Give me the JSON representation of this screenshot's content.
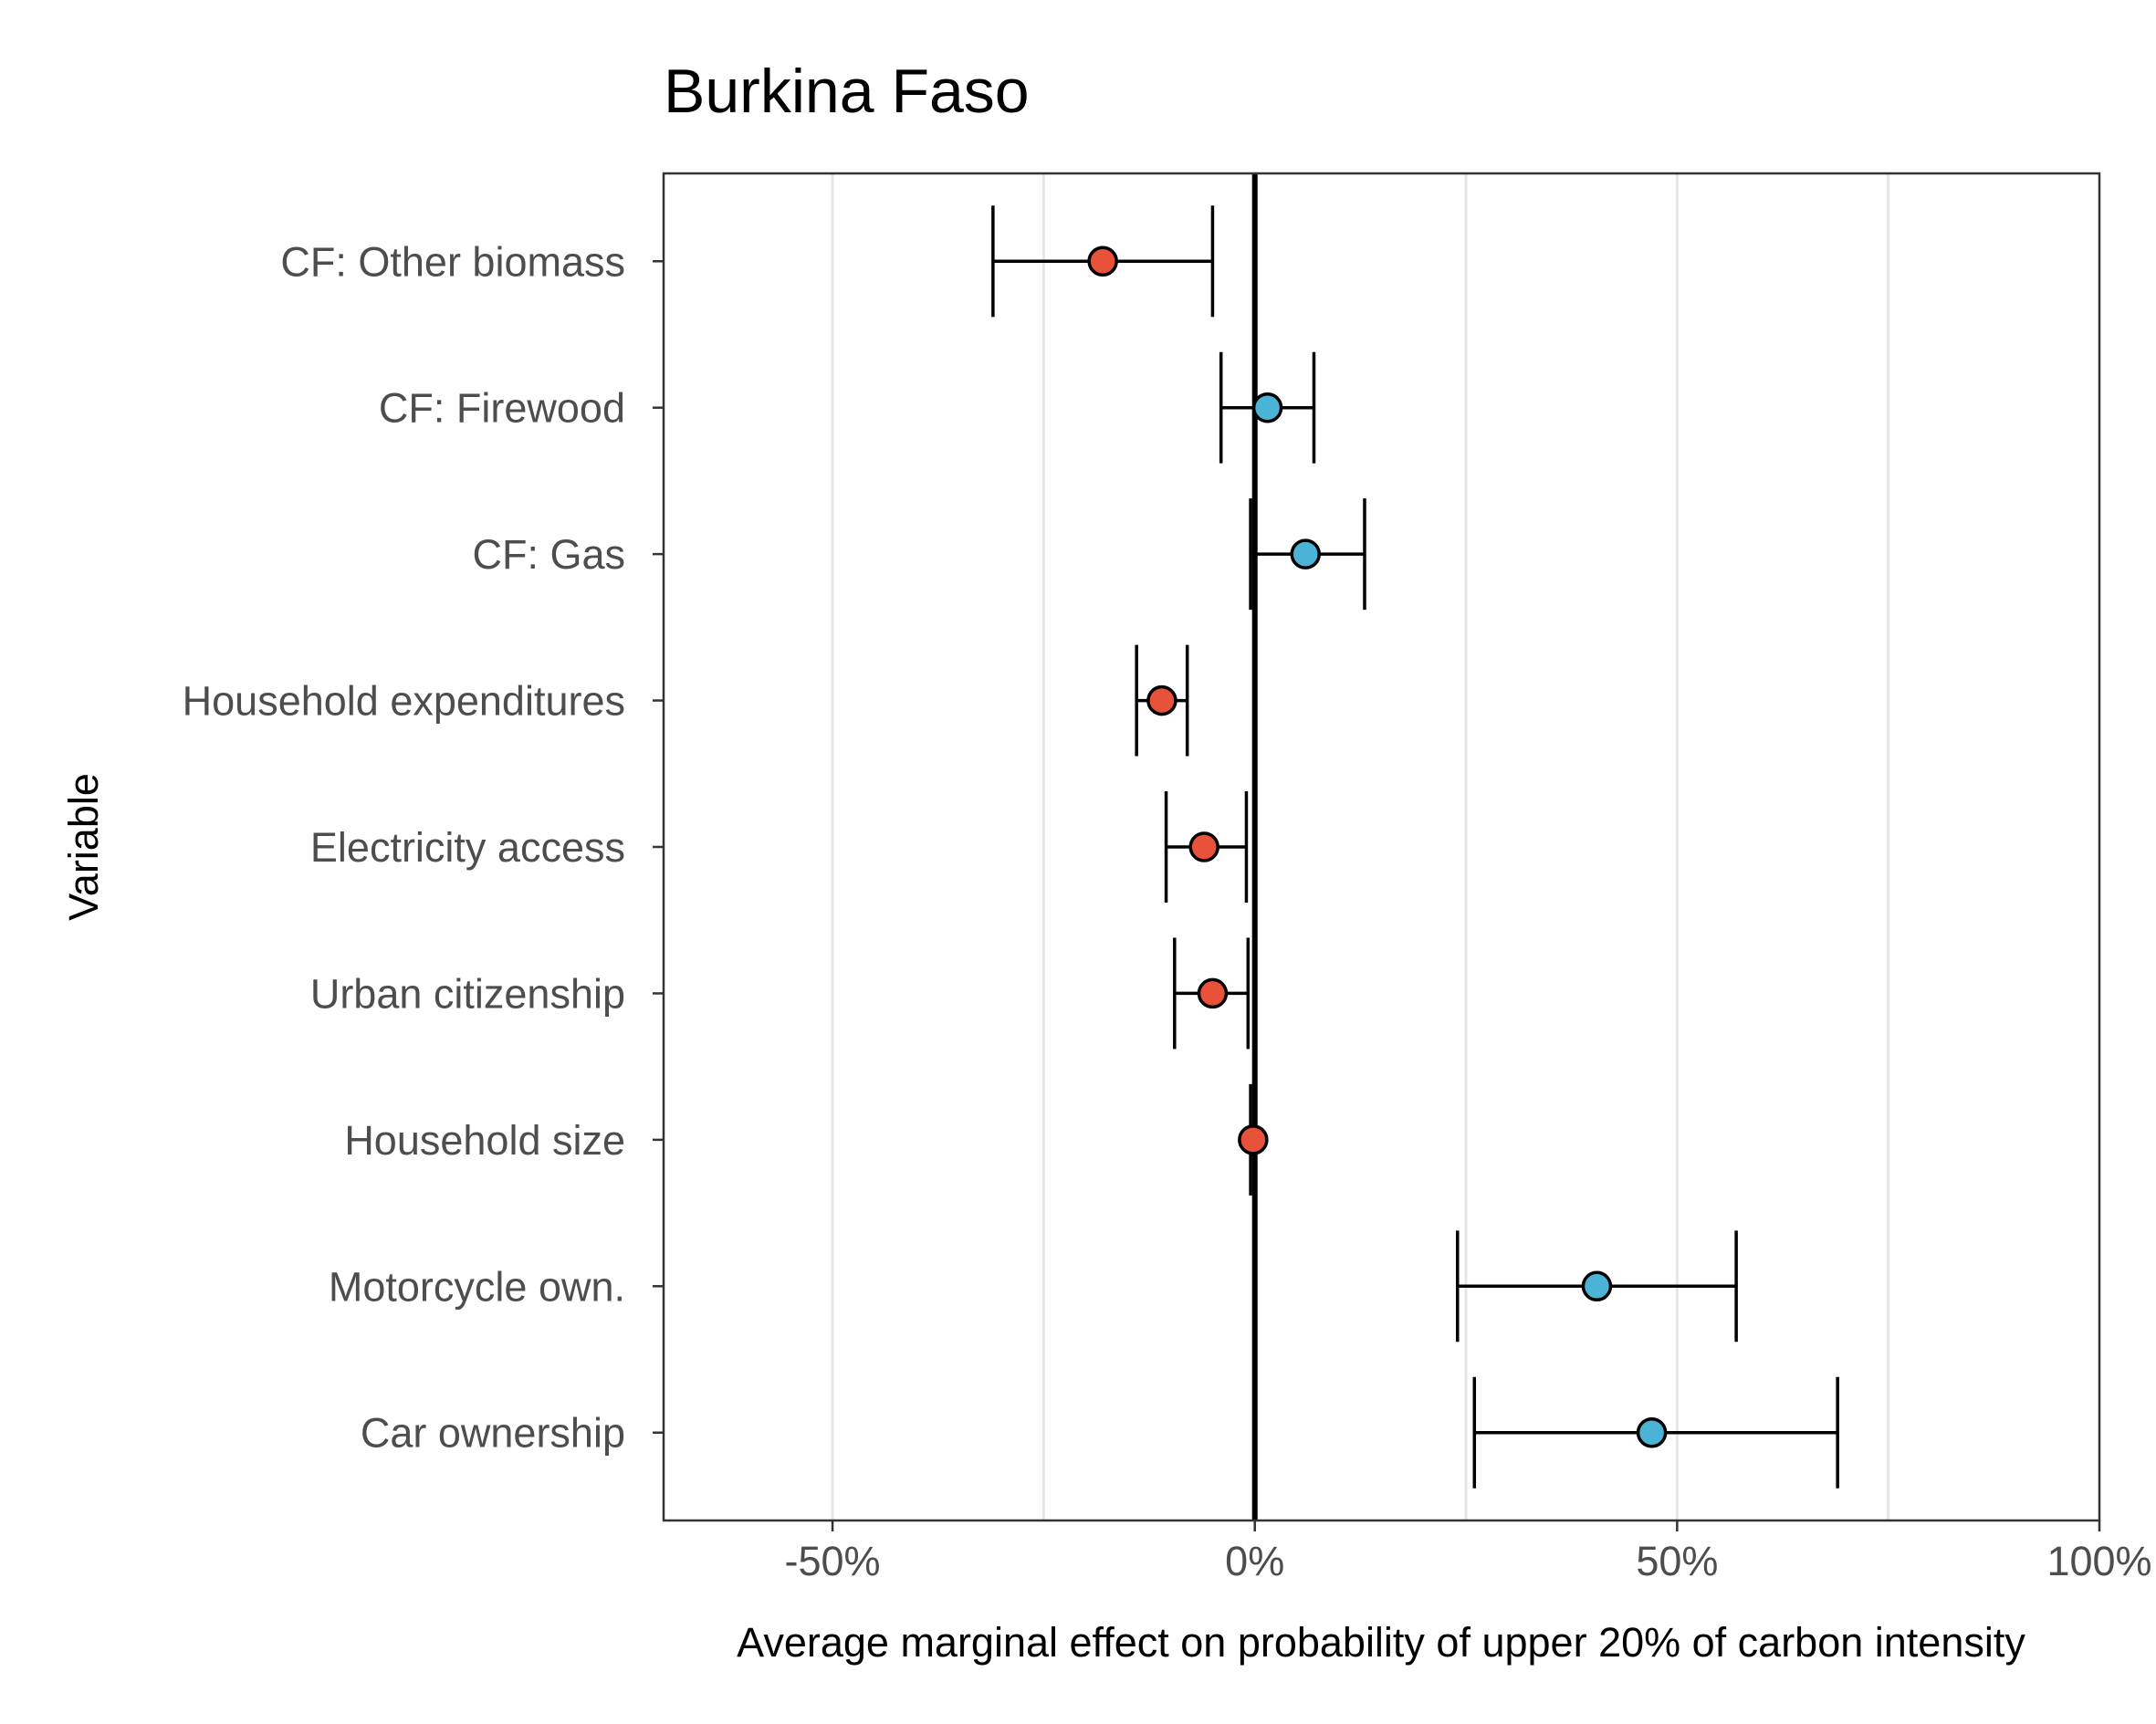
{
  "chart_data": {
    "type": "scatter",
    "subtype": "coefficient plot with error bars",
    "title": "Burkina Faso",
    "xlabel": "Average marginal effect on probability of upper 20% of carbon intensity",
    "ylabel": "Variable",
    "xlim": [
      -70,
      100
    ],
    "x_ticks": [
      -50,
      0,
      50,
      100
    ],
    "x_tick_labels": [
      "-50%",
      "0%",
      "50%",
      "100%"
    ],
    "x_grid": true,
    "reference_line_x": 0,
    "colors": {
      "negative": "#E8513A",
      "positive": "#4BB4D6"
    },
    "categories": [
      "CF: Other biomass",
      "CF: Firewood",
      "CF: Gas",
      "Household expenditures",
      "Electricity access",
      "Urban citizenship",
      "Household size",
      "Motorcycle own.",
      "Car ownership"
    ],
    "points": [
      {
        "label": "CF: Other biomass",
        "estimate": -18,
        "ci_low": -31,
        "ci_high": -5,
        "sign": "negative"
      },
      {
        "label": "CF: Firewood",
        "estimate": 1.5,
        "ci_low": -4,
        "ci_high": 7,
        "sign": "positive"
      },
      {
        "label": "CF: Gas",
        "estimate": 6,
        "ci_low": -0.5,
        "ci_high": 13,
        "sign": "positive"
      },
      {
        "label": "Household expenditures",
        "estimate": -11,
        "ci_low": -14,
        "ci_high": -8,
        "sign": "negative"
      },
      {
        "label": "Electricity access",
        "estimate": -6,
        "ci_low": -10.5,
        "ci_high": -1,
        "sign": "negative"
      },
      {
        "label": "Urban citizenship",
        "estimate": -5,
        "ci_low": -9.5,
        "ci_high": -0.8,
        "sign": "negative"
      },
      {
        "label": "Household size",
        "estimate": -0.2,
        "ci_low": -0.5,
        "ci_high": 0,
        "sign": "negative"
      },
      {
        "label": "Motorcycle own.",
        "estimate": 40.5,
        "ci_low": 24,
        "ci_high": 57,
        "sign": "positive"
      },
      {
        "label": "Car ownership",
        "estimate": 47,
        "ci_low": 26,
        "ci_high": 69,
        "sign": "positive"
      }
    ]
  }
}
